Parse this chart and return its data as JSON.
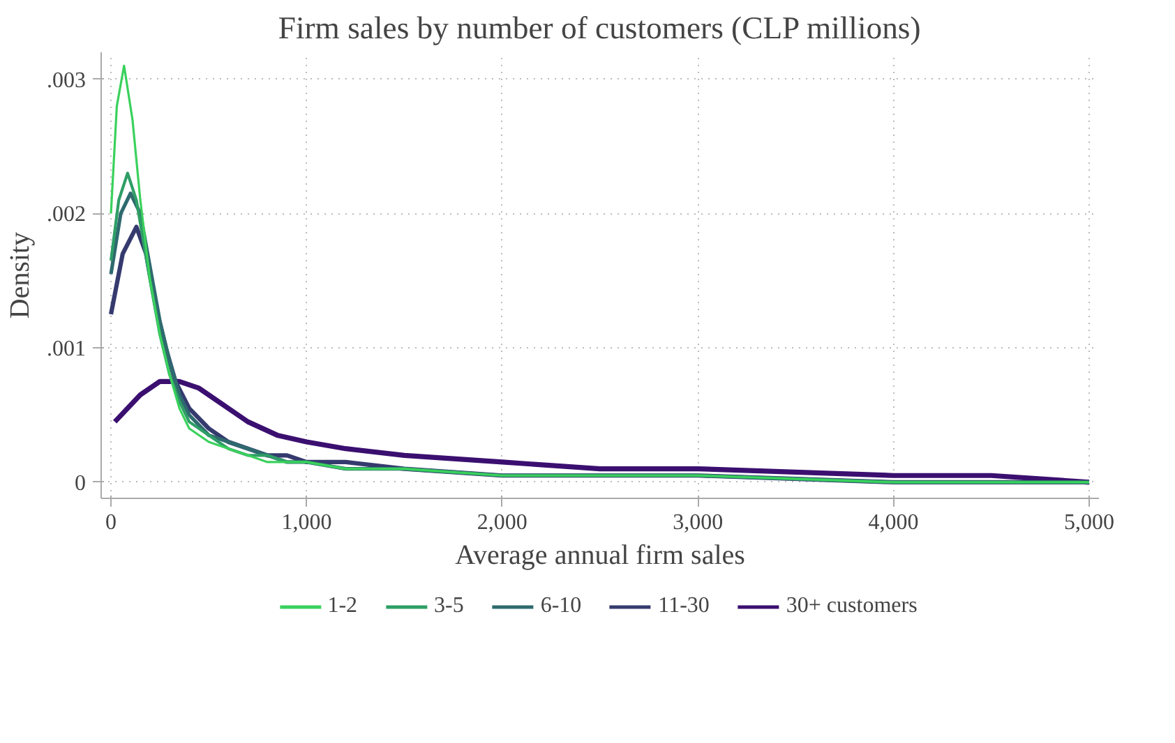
{
  "chart_data": {
    "type": "line",
    "title": "Firm sales by number of customers (CLP millions)",
    "xlabel": "Average annual firm sales",
    "ylabel": "Density",
    "xlim": [
      -50,
      5050
    ],
    "ylim": [
      -0.00012,
      0.0032
    ],
    "xticks": [
      0,
      {
        "value": 1000,
        "label": "1,000"
      },
      {
        "value": 2000,
        "label": "2,000"
      },
      {
        "value": 3000,
        "label": "3,000"
      },
      {
        "value": 4000,
        "label": "4,000"
      },
      {
        "value": 5000,
        "label": "5,000"
      }
    ],
    "yticks": [
      0,
      {
        "value": 0.001,
        "label": ".001"
      },
      {
        "value": 0.002,
        "label": ".002"
      },
      {
        "value": 0.003,
        "label": ".003"
      }
    ],
    "grid": true,
    "legend": "bottom",
    "line_style": "solid",
    "marker": "none",
    "series": [
      {
        "name": "1-2",
        "color": "#3ad15c",
        "x": [
          0,
          30,
          67,
          110,
          150,
          200,
          250,
          300,
          350,
          400,
          500,
          600,
          700,
          800,
          900,
          1000,
          1200,
          1500,
          2000,
          3000,
          4000,
          5000
        ],
        "values": [
          0.002,
          0.0028,
          0.0031,
          0.0027,
          0.0021,
          0.0015,
          0.0011,
          0.0008,
          0.00055,
          0.0004,
          0.0003,
          0.00025,
          0.0002,
          0.00015,
          0.00015,
          0.00015,
          0.0001,
          0.0001,
          5e-05,
          5e-05,
          0,
          0
        ]
      },
      {
        "name": "3-5",
        "color": "#2e9e66",
        "x": [
          0,
          40,
          85,
          130,
          200,
          250,
          300,
          350,
          400,
          500,
          600,
          700,
          800,
          900,
          1000,
          1200,
          1500,
          2000,
          3000,
          4000,
          5000
        ],
        "values": [
          0.00165,
          0.0021,
          0.0023,
          0.0021,
          0.0015,
          0.0011,
          0.0008,
          0.0006,
          0.00045,
          0.00035,
          0.00025,
          0.0002,
          0.0002,
          0.00015,
          0.00015,
          0.0001,
          0.0001,
          5e-05,
          5e-05,
          0,
          0
        ]
      },
      {
        "name": "6-10",
        "color": "#2e6a6e",
        "x": [
          0,
          50,
          100,
          150,
          200,
          250,
          300,
          350,
          400,
          500,
          600,
          700,
          800,
          900,
          1000,
          1200,
          1500,
          2000,
          3000,
          4000,
          5000
        ],
        "values": [
          0.00155,
          0.002,
          0.00215,
          0.002,
          0.0016,
          0.0012,
          0.0009,
          0.00065,
          0.0005,
          0.00035,
          0.0003,
          0.00025,
          0.0002,
          0.00015,
          0.00015,
          0.0001,
          0.0001,
          5e-05,
          5e-05,
          0,
          0
        ]
      },
      {
        "name": "11-30",
        "color": "#353a6e",
        "x": [
          0,
          60,
          130,
          180,
          230,
          280,
          330,
          400,
          500,
          600,
          700,
          800,
          900,
          1000,
          1200,
          1500,
          2000,
          3000,
          4000,
          5000
        ],
        "values": [
          0.00125,
          0.0017,
          0.0019,
          0.0017,
          0.0013,
          0.001,
          0.00075,
          0.00055,
          0.0004,
          0.0003,
          0.00025,
          0.0002,
          0.0002,
          0.00015,
          0.00015,
          0.0001,
          5e-05,
          5e-05,
          0,
          0
        ]
      },
      {
        "name": "30+ customers",
        "color": "#3b0f70",
        "x": [
          20,
          150,
          250,
          350,
          450,
          550,
          700,
          850,
          1000,
          1200,
          1500,
          2000,
          2500,
          3000,
          4000,
          4500,
          5000
        ],
        "values": [
          0.00045,
          0.00065,
          0.00075,
          0.00075,
          0.0007,
          0.0006,
          0.00045,
          0.00035,
          0.0003,
          0.00025,
          0.0002,
          0.00015,
          0.0001,
          0.0001,
          5e-05,
          5e-05,
          0
        ]
      }
    ]
  }
}
